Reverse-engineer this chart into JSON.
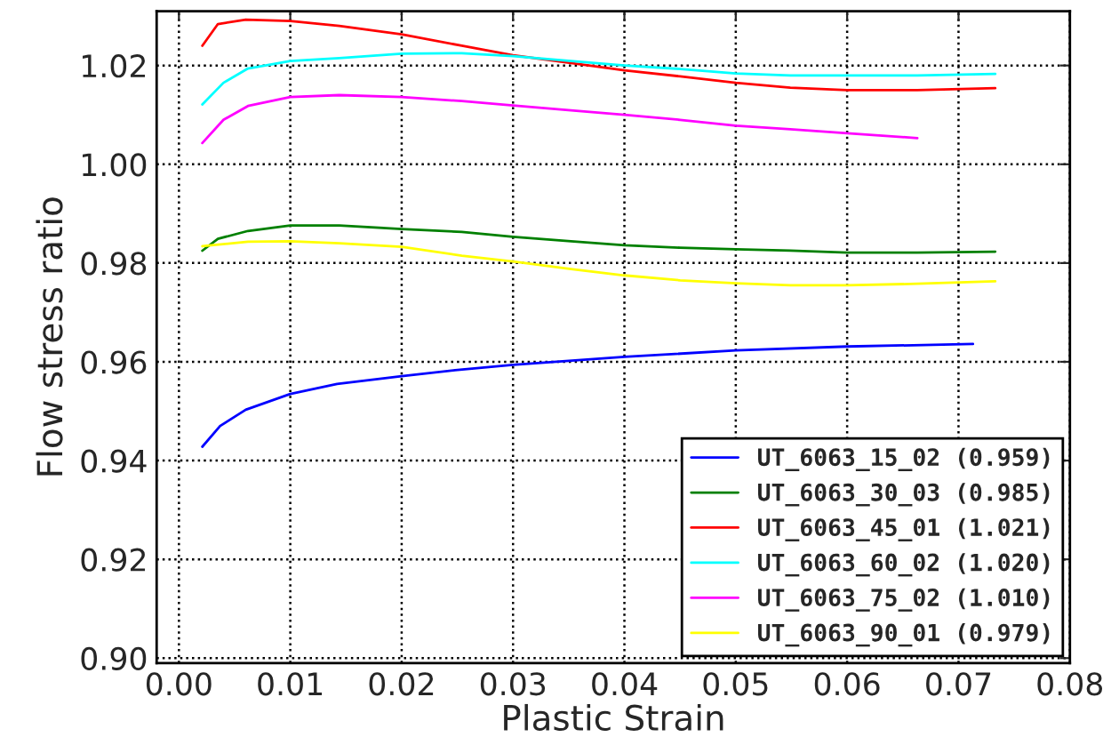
{
  "chart_data": {
    "type": "line",
    "xlabel": "Plastic Strain",
    "ylabel": "Flow stress ratio",
    "xlim": [
      -0.002,
      0.08
    ],
    "ylim": [
      0.899,
      1.031
    ],
    "xticks": [
      "0.00",
      0.01,
      0.02,
      0.03,
      0.04,
      0.05,
      0.06,
      0.07,
      0.08
    ],
    "yticks": [
      {
        "value": 0.9,
        "label": "0.90"
      },
      0.92,
      0.94,
      0.96,
      0.98,
      {
        "value": 1.0,
        "label": "1.00"
      },
      1.02
    ],
    "grid": true,
    "legend": "bottom right",
    "line_style": "solid",
    "marker": "none",
    "series": [
      {
        "name": "UT_6063_15_02 (0.959)",
        "color": "#0000ff",
        "x": [
          0.0021,
          0.0037,
          0.006,
          0.01,
          0.0142,
          0.02,
          0.0248,
          0.03,
          0.04,
          0.05,
          0.06,
          0.0713
        ],
        "values": [
          0.9428,
          0.947,
          0.9503,
          0.9535,
          0.9555,
          0.9571,
          0.9583,
          0.9594,
          0.961,
          0.9623,
          0.9631,
          0.9636
        ]
      },
      {
        "name": "UT_6063_30_03 (0.985)",
        "color": "#008000",
        "x": [
          0.0021,
          0.0035,
          0.0062,
          0.01,
          0.0144,
          0.02,
          0.0254,
          0.03,
          0.0352,
          0.04,
          0.045,
          0.05,
          0.0549,
          0.06,
          0.0663,
          0.0733
        ],
        "values": [
          0.9825,
          0.9849,
          0.9865,
          0.9876,
          0.9876,
          0.9869,
          0.9863,
          0.9853,
          0.9844,
          0.9836,
          0.9831,
          0.9828,
          0.9825,
          0.9821,
          0.9821,
          0.9823
        ]
      },
      {
        "name": "UT_6063_45_01 (1.021)",
        "color": "#ff0000",
        "x": [
          0.0021,
          0.0035,
          0.006,
          0.01,
          0.0144,
          0.02,
          0.0254,
          0.03,
          0.0352,
          0.04,
          0.045,
          0.05,
          0.0549,
          0.06,
          0.0663,
          0.0733
        ],
        "values": [
          1.024,
          1.0284,
          1.0293,
          1.029,
          1.028,
          1.0263,
          1.024,
          1.0221,
          1.0205,
          1.019,
          1.0178,
          1.0165,
          1.0155,
          1.015,
          1.015,
          1.0154
        ]
      },
      {
        "name": "UT_6063_60_02 (1.020)",
        "color": "#00ffff",
        "x": [
          0.0021,
          0.004,
          0.0062,
          0.01,
          0.0144,
          0.02,
          0.0254,
          0.03,
          0.0352,
          0.04,
          0.045,
          0.05,
          0.0549,
          0.06,
          0.0663,
          0.0733
        ],
        "values": [
          1.0121,
          1.0165,
          1.0194,
          1.0209,
          1.0215,
          1.0224,
          1.0225,
          1.0219,
          1.0209,
          1.02,
          1.0193,
          1.0184,
          1.018,
          1.018,
          1.018,
          1.0183
        ]
      },
      {
        "name": "UT_6063_75_02 (1.010)",
        "color": "#ff00ff",
        "x": [
          0.0021,
          0.004,
          0.0062,
          0.01,
          0.0144,
          0.02,
          0.0254,
          0.03,
          0.0352,
          0.04,
          0.045,
          0.05,
          0.0549,
          0.06,
          0.0663
        ],
        "values": [
          1.0043,
          1.009,
          1.0118,
          1.0136,
          1.014,
          1.0136,
          1.0128,
          1.0119,
          1.0109,
          1.01,
          1.009,
          1.0078,
          1.0071,
          1.0063,
          1.0053
        ]
      },
      {
        "name": "UT_6063_90_01 (0.979)",
        "color": "#ffff00",
        "x": [
          0.0021,
          0.0062,
          0.01,
          0.0144,
          0.02,
          0.0254,
          0.03,
          0.0352,
          0.04,
          0.045,
          0.05,
          0.0549,
          0.06,
          0.0663,
          0.0733
        ],
        "values": [
          0.9834,
          0.9843,
          0.9844,
          0.984,
          0.9833,
          0.9815,
          0.9803,
          0.9788,
          0.9775,
          0.9765,
          0.9759,
          0.9755,
          0.9755,
          0.9758,
          0.9763
        ]
      }
    ]
  }
}
